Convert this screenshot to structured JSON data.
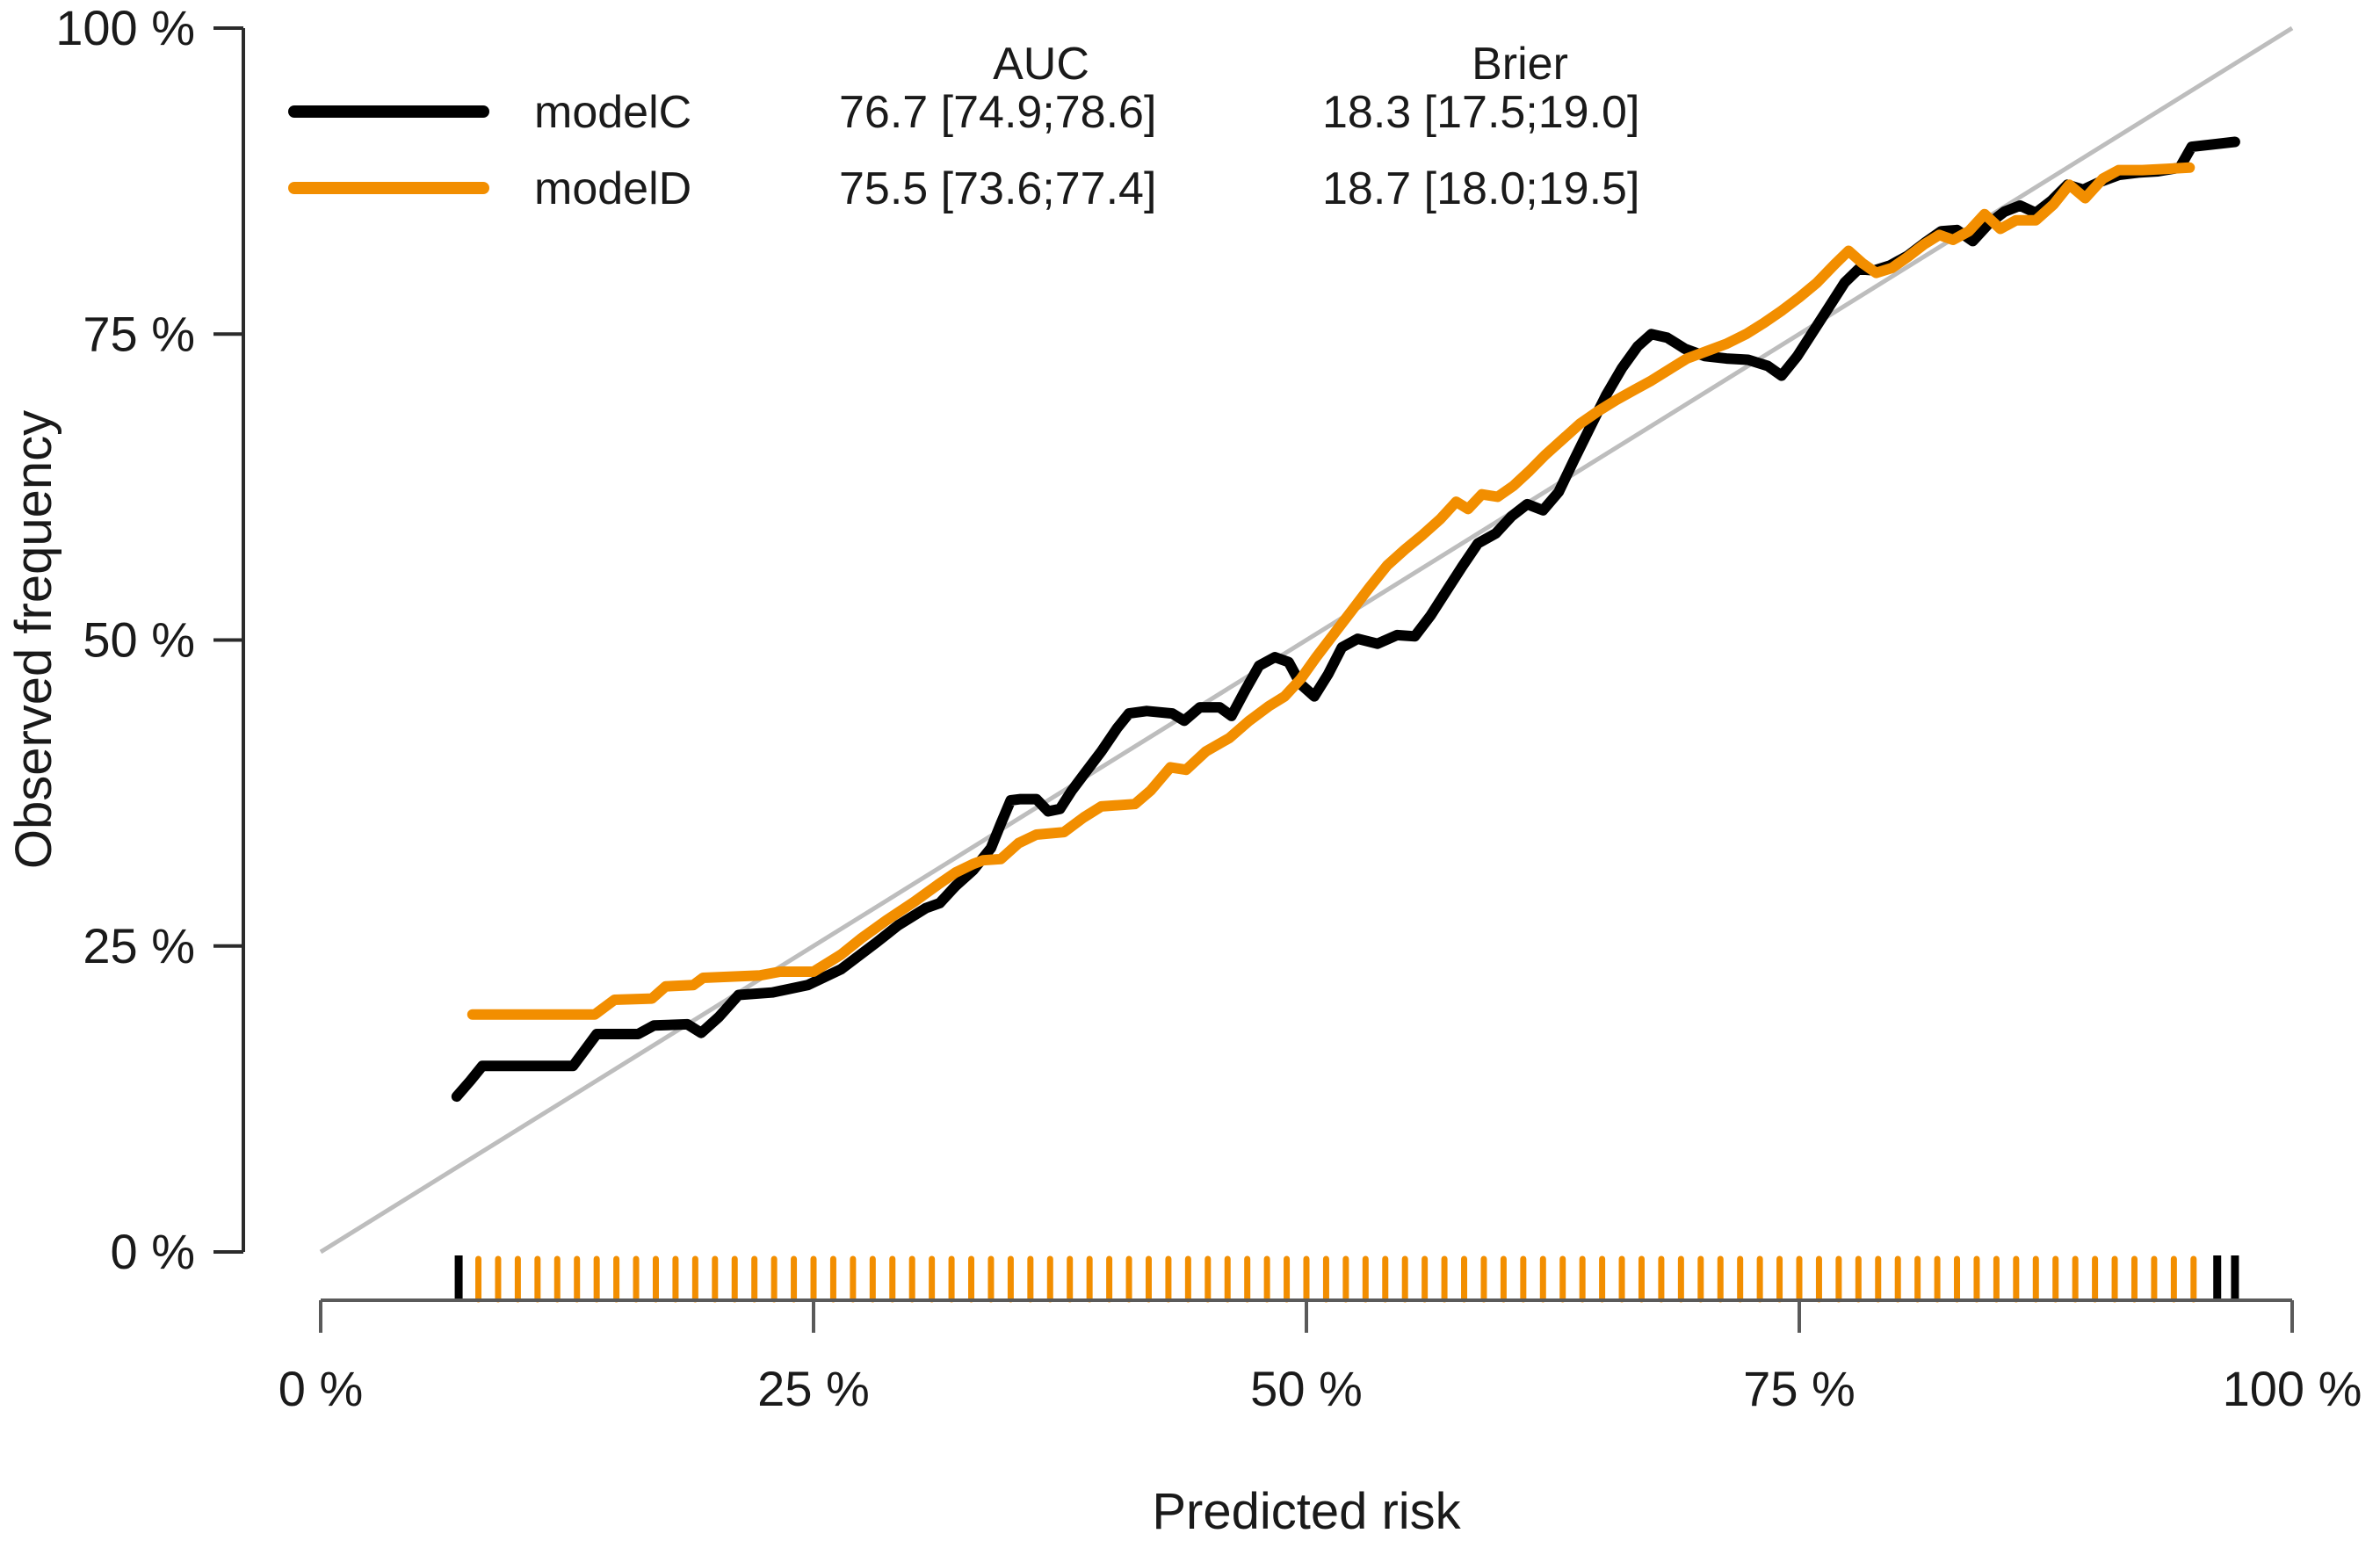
{
  "chart_data": {
    "type": "line",
    "title": "",
    "xlabel": "Predicted risk",
    "ylabel": "Observed frequency",
    "xlim": [
      0,
      100
    ],
    "ylim": [
      0,
      100
    ],
    "grid": false,
    "identity_line": true,
    "identity_color": "#bdbdbd",
    "x_axis_color": "#5a5a5a",
    "y_axis_color": "#2b2b2b",
    "x_ticks": [
      {
        "value": 0,
        "label": "0 %"
      },
      {
        "value": 25,
        "label": "25 %"
      },
      {
        "value": 50,
        "label": "50 %"
      },
      {
        "value": 75,
        "label": "75 %"
      },
      {
        "value": 100,
        "label": "100 %"
      }
    ],
    "y_ticks": [
      {
        "value": 0,
        "label": "0 %"
      },
      {
        "value": 25,
        "label": "25 %"
      },
      {
        "value": 50,
        "label": "50 %"
      },
      {
        "value": 75,
        "label": "75 %"
      },
      {
        "value": 100,
        "label": "100 %"
      }
    ],
    "legend": {
      "position": "top-left-inside",
      "headers": {
        "auc": "AUC",
        "brier": "Brier"
      },
      "rows": [
        {
          "name": "modelC",
          "color": "#000000",
          "auc": "76.7 [74.9;78.6]",
          "brier": "18.3 [17.5;19.0]"
        },
        {
          "name": "modelD",
          "color": "#F28E00",
          "auc": "75.5 [73.6;77.4]",
          "brier": "18.7 [18.0;19.5]"
        }
      ]
    },
    "series": [
      {
        "name": "modelC",
        "color": "#000000",
        "points": [
          [
            6.9,
            12.7
          ],
          [
            7.6,
            14.0
          ],
          [
            8.2,
            15.2
          ],
          [
            12.8,
            15.2
          ],
          [
            13.4,
            16.5
          ],
          [
            14.0,
            17.8
          ],
          [
            16.1,
            17.8
          ],
          [
            16.9,
            18.5
          ],
          [
            18.6,
            18.6
          ],
          [
            19.3,
            17.9
          ],
          [
            20.2,
            19.2
          ],
          [
            21.2,
            21.0
          ],
          [
            22.9,
            21.2
          ],
          [
            24.7,
            21.8
          ],
          [
            26.4,
            23.1
          ],
          [
            28.2,
            25.3
          ],
          [
            29.3,
            26.7
          ],
          [
            30.7,
            28.1
          ],
          [
            31.4,
            28.5
          ],
          [
            32.2,
            29.9
          ],
          [
            33.1,
            31.2
          ],
          [
            34.0,
            33.0
          ],
          [
            34.5,
            35.0
          ],
          [
            35.0,
            36.9
          ],
          [
            35.5,
            37.0
          ],
          [
            36.3,
            37.0
          ],
          [
            36.9,
            36.0
          ],
          [
            37.5,
            36.2
          ],
          [
            38.1,
            37.7
          ],
          [
            38.8,
            39.2
          ],
          [
            39.6,
            40.9
          ],
          [
            40.4,
            42.8
          ],
          [
            41.0,
            44.0
          ],
          [
            41.9,
            44.2
          ],
          [
            43.2,
            44.0
          ],
          [
            43.8,
            43.4
          ],
          [
            44.6,
            44.5
          ],
          [
            45.6,
            44.5
          ],
          [
            46.2,
            43.8
          ],
          [
            46.9,
            45.9
          ],
          [
            47.6,
            47.9
          ],
          [
            48.4,
            48.6
          ],
          [
            49.1,
            48.2
          ],
          [
            49.7,
            46.4
          ],
          [
            50.4,
            45.4
          ],
          [
            51.1,
            47.2
          ],
          [
            51.8,
            49.4
          ],
          [
            52.6,
            50.1
          ],
          [
            53.6,
            49.7
          ],
          [
            54.6,
            50.4
          ],
          [
            55.5,
            50.3
          ],
          [
            56.3,
            52.0
          ],
          [
            57.1,
            54.0
          ],
          [
            57.9,
            56.0
          ],
          [
            58.7,
            57.9
          ],
          [
            59.6,
            58.7
          ],
          [
            60.4,
            60.1
          ],
          [
            61.2,
            61.1
          ],
          [
            62.0,
            60.6
          ],
          [
            62.8,
            62.1
          ],
          [
            63.6,
            64.8
          ],
          [
            64.4,
            67.4
          ],
          [
            65.2,
            70.0
          ],
          [
            66.0,
            72.2
          ],
          [
            66.8,
            74.0
          ],
          [
            67.5,
            75.0
          ],
          [
            68.3,
            74.7
          ],
          [
            69.2,
            73.8
          ],
          [
            70.2,
            73.2
          ],
          [
            71.3,
            73.0
          ],
          [
            72.4,
            72.9
          ],
          [
            73.4,
            72.4
          ],
          [
            74.1,
            71.6
          ],
          [
            74.9,
            73.2
          ],
          [
            75.7,
            75.2
          ],
          [
            76.5,
            77.2
          ],
          [
            77.3,
            79.2
          ],
          [
            78.0,
            80.3
          ],
          [
            78.8,
            80.2
          ],
          [
            79.6,
            80.6
          ],
          [
            80.5,
            81.4
          ],
          [
            81.4,
            82.5
          ],
          [
            82.2,
            83.4
          ],
          [
            83.0,
            83.5
          ],
          [
            83.8,
            82.6
          ],
          [
            84.6,
            84.0
          ],
          [
            85.4,
            85.0
          ],
          [
            86.2,
            85.5
          ],
          [
            87.0,
            84.9
          ],
          [
            87.8,
            85.9
          ],
          [
            88.6,
            87.2
          ],
          [
            89.4,
            86.8
          ],
          [
            90.2,
            87.4
          ],
          [
            91.2,
            88.0
          ],
          [
            92.2,
            88.2
          ],
          [
            93.2,
            88.3
          ],
          [
            94.3,
            88.6
          ],
          [
            94.9,
            90.3
          ],
          [
            96.0,
            90.5
          ],
          [
            97.1,
            90.7
          ]
        ]
      },
      {
        "name": "modelD",
        "color": "#F28E00",
        "points": [
          [
            7.7,
            19.4
          ],
          [
            13.9,
            19.4
          ],
          [
            14.9,
            20.6
          ],
          [
            16.8,
            20.7
          ],
          [
            17.5,
            21.7
          ],
          [
            18.9,
            21.8
          ],
          [
            19.4,
            22.4
          ],
          [
            22.3,
            22.6
          ],
          [
            23.3,
            22.9
          ],
          [
            25.0,
            22.9
          ],
          [
            26.4,
            24.3
          ],
          [
            27.4,
            25.6
          ],
          [
            28.7,
            27.1
          ],
          [
            30.1,
            28.6
          ],
          [
            31.3,
            30.0
          ],
          [
            32.2,
            31.0
          ],
          [
            33.1,
            31.7
          ],
          [
            33.6,
            32.0
          ],
          [
            34.5,
            32.1
          ],
          [
            35.4,
            33.4
          ],
          [
            36.3,
            34.1
          ],
          [
            37.7,
            34.3
          ],
          [
            38.7,
            35.5
          ],
          [
            39.6,
            36.4
          ],
          [
            41.3,
            36.6
          ],
          [
            42.1,
            37.7
          ],
          [
            43.1,
            39.6
          ],
          [
            43.9,
            39.4
          ],
          [
            44.9,
            40.9
          ],
          [
            46.1,
            42.0
          ],
          [
            47.1,
            43.4
          ],
          [
            48.1,
            44.6
          ],
          [
            48.9,
            45.4
          ],
          [
            49.7,
            46.8
          ],
          [
            50.5,
            48.6
          ],
          [
            51.4,
            50.5
          ],
          [
            52.3,
            52.4
          ],
          [
            53.2,
            54.3
          ],
          [
            54.1,
            56.1
          ],
          [
            55.0,
            57.4
          ],
          [
            55.9,
            58.6
          ],
          [
            56.8,
            59.9
          ],
          [
            57.6,
            61.3
          ],
          [
            58.2,
            60.7
          ],
          [
            58.9,
            61.9
          ],
          [
            59.7,
            61.7
          ],
          [
            60.5,
            62.6
          ],
          [
            61.3,
            63.8
          ],
          [
            62.1,
            65.1
          ],
          [
            63.0,
            66.4
          ],
          [
            63.9,
            67.7
          ],
          [
            64.8,
            68.7
          ],
          [
            65.7,
            69.6
          ],
          [
            66.6,
            70.4
          ],
          [
            67.5,
            71.2
          ],
          [
            68.4,
            72.1
          ],
          [
            69.3,
            73.0
          ],
          [
            70.3,
            73.6
          ],
          [
            71.3,
            74.2
          ],
          [
            72.3,
            75.0
          ],
          [
            73.2,
            75.9
          ],
          [
            74.1,
            76.9
          ],
          [
            75.0,
            78.0
          ],
          [
            75.9,
            79.2
          ],
          [
            76.8,
            80.7
          ],
          [
            77.5,
            81.8
          ],
          [
            78.2,
            80.8
          ],
          [
            78.9,
            80.0
          ],
          [
            79.7,
            80.4
          ],
          [
            80.5,
            81.3
          ],
          [
            81.3,
            82.3
          ],
          [
            82.1,
            83.1
          ],
          [
            82.8,
            82.7
          ],
          [
            83.6,
            83.4
          ],
          [
            84.4,
            84.8
          ],
          [
            85.2,
            83.6
          ],
          [
            86.0,
            84.3
          ],
          [
            87.0,
            84.3
          ],
          [
            87.9,
            85.6
          ],
          [
            88.7,
            87.2
          ],
          [
            89.5,
            86.1
          ],
          [
            90.4,
            87.7
          ],
          [
            91.2,
            88.4
          ],
          [
            92.4,
            88.4
          ],
          [
            93.6,
            88.5
          ],
          [
            94.8,
            88.6
          ]
        ]
      }
    ],
    "rug": {
      "black_ticks": [
        7.0,
        96.2,
        97.1
      ],
      "orange_tick_start": 8,
      "orange_tick_end": 95,
      "orange_tick_step": 1,
      "orange_color": "#F28E00",
      "black_color": "#000000"
    }
  }
}
